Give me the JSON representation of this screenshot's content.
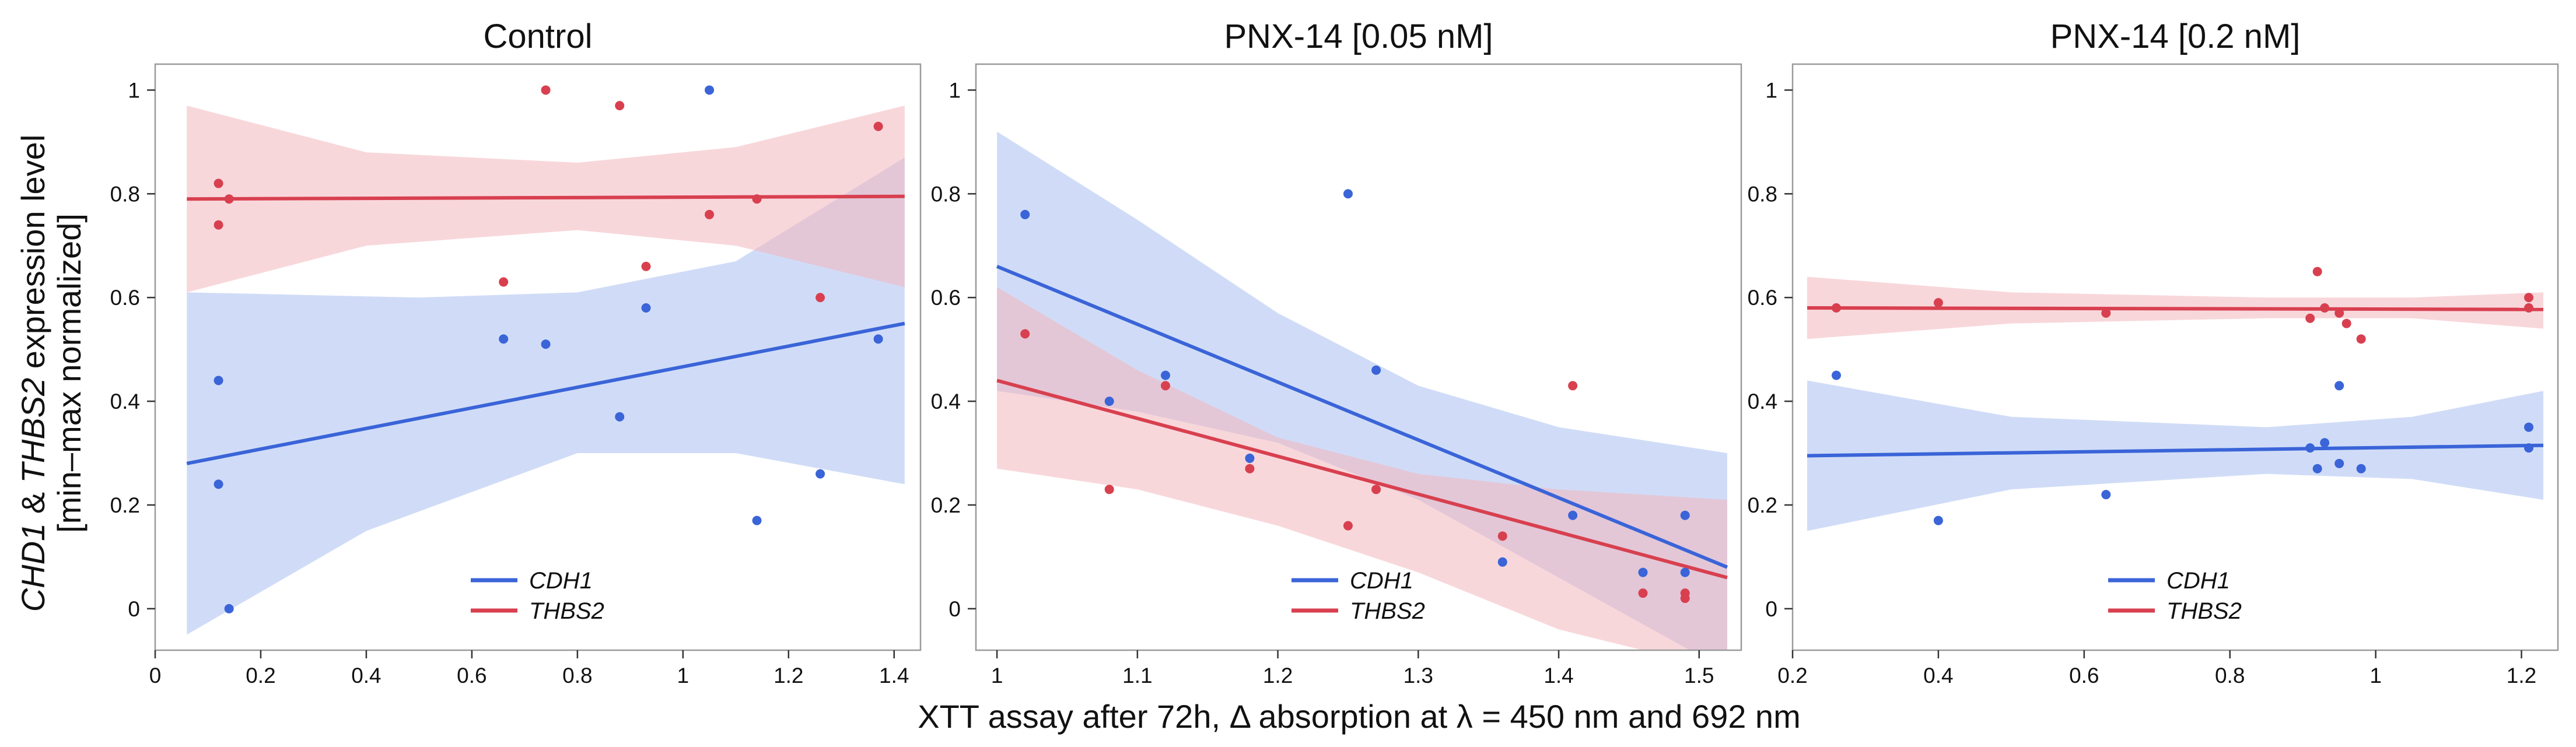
{
  "figure": {
    "xlabel": "XTT assay after 72h, Δ absorption at λ = 450 nm and 692 nm",
    "ylabel": {
      "line1_gene1": "CHD1",
      "line1_amp": " & ",
      "line1_gene2": "THBS2",
      "line1_rest": " expression level",
      "line2": "[min–max normalized]"
    }
  },
  "colors": {
    "CDH1": "#3a64d8",
    "THBS2": "#d8404f",
    "CDH1_band": "#a9bff0",
    "THBS2_band": "#f2b6bd"
  },
  "chart_data": [
    {
      "type": "scatter",
      "title": "Control",
      "xlim": [
        0,
        1.45
      ],
      "ylim": [
        -0.08,
        1.05
      ],
      "xticks": [
        0,
        0.2,
        0.4,
        0.6,
        0.8,
        1.0,
        1.2,
        1.4
      ],
      "yticks": [
        0,
        0.2,
        0.4,
        0.6,
        0.8,
        1
      ],
      "legend": "bottom-center",
      "series": [
        {
          "name": "CDH1",
          "points": [
            [
              0.12,
              0.44
            ],
            [
              0.12,
              0.24
            ],
            [
              0.14,
              0.0
            ],
            [
              0.66,
              0.52
            ],
            [
              0.74,
              0.51
            ],
            [
              0.88,
              0.37
            ],
            [
              0.93,
              0.58
            ],
            [
              1.05,
              1.0
            ],
            [
              1.14,
              0.17
            ],
            [
              1.26,
              0.26
            ],
            [
              1.37,
              0.52
            ]
          ],
          "fit": [
            [
              0.06,
              0.28
            ],
            [
              1.42,
              0.55
            ]
          ],
          "band_upper": [
            [
              0.06,
              0.61
            ],
            [
              0.5,
              0.6
            ],
            [
              0.8,
              0.61
            ],
            [
              1.1,
              0.67
            ],
            [
              1.42,
              0.87
            ]
          ],
          "band_lower": [
            [
              0.06,
              -0.05
            ],
            [
              0.4,
              0.15
            ],
            [
              0.8,
              0.3
            ],
            [
              1.1,
              0.3
            ],
            [
              1.42,
              0.24
            ]
          ]
        },
        {
          "name": "THBS2",
          "points": [
            [
              0.12,
              0.82
            ],
            [
              0.12,
              0.74
            ],
            [
              0.14,
              0.79
            ],
            [
              0.66,
              0.63
            ],
            [
              0.74,
              1.0
            ],
            [
              0.88,
              0.97
            ],
            [
              0.93,
              0.66
            ],
            [
              1.05,
              0.76
            ],
            [
              1.14,
              0.79
            ],
            [
              1.26,
              0.6
            ],
            [
              1.37,
              0.93
            ]
          ],
          "fit": [
            [
              0.06,
              0.79
            ],
            [
              1.42,
              0.795
            ]
          ],
          "band_upper": [
            [
              0.06,
              0.97
            ],
            [
              0.4,
              0.88
            ],
            [
              0.8,
              0.86
            ],
            [
              1.1,
              0.89
            ],
            [
              1.42,
              0.97
            ]
          ],
          "band_lower": [
            [
              0.06,
              0.61
            ],
            [
              0.4,
              0.7
            ],
            [
              0.8,
              0.73
            ],
            [
              1.1,
              0.7
            ],
            [
              1.42,
              0.62
            ]
          ]
        }
      ]
    },
    {
      "type": "scatter",
      "title": "PNX-14 [0.05 nM]",
      "xlim": [
        0.985,
        1.53
      ],
      "ylim": [
        -0.08,
        1.05
      ],
      "xticks": [
        1.0,
        1.1,
        1.2,
        1.3,
        1.4,
        1.5
      ],
      "yticks": [
        0,
        0.2,
        0.4,
        0.6,
        0.8,
        1
      ],
      "legend": "bottom-center",
      "series": [
        {
          "name": "CDH1",
          "points": [
            [
              1.02,
              0.76
            ],
            [
              1.08,
              0.4
            ],
            [
              1.12,
              0.45
            ],
            [
              1.18,
              0.29
            ],
            [
              1.25,
              0.8
            ],
            [
              1.27,
              0.46
            ],
            [
              1.36,
              0.09
            ],
            [
              1.41,
              0.18
            ],
            [
              1.46,
              0.07
            ],
            [
              1.49,
              0.18
            ],
            [
              1.49,
              0.07
            ]
          ],
          "fit": [
            [
              1.0,
              0.66
            ],
            [
              1.52,
              0.08
            ]
          ],
          "band_upper": [
            [
              1.0,
              0.92
            ],
            [
              1.1,
              0.75
            ],
            [
              1.2,
              0.57
            ],
            [
              1.3,
              0.43
            ],
            [
              1.4,
              0.35
            ],
            [
              1.52,
              0.3
            ]
          ],
          "band_lower": [
            [
              1.0,
              0.42
            ],
            [
              1.1,
              0.38
            ],
            [
              1.2,
              0.32
            ],
            [
              1.3,
              0.21
            ],
            [
              1.4,
              0.06
            ],
            [
              1.52,
              -0.12
            ]
          ]
        },
        {
          "name": "THBS2",
          "points": [
            [
              1.02,
              0.53
            ],
            [
              1.08,
              0.23
            ],
            [
              1.12,
              0.43
            ],
            [
              1.18,
              0.27
            ],
            [
              1.25,
              0.16
            ],
            [
              1.27,
              0.23
            ],
            [
              1.36,
              0.14
            ],
            [
              1.41,
              0.43
            ],
            [
              1.46,
              0.03
            ],
            [
              1.49,
              0.03
            ],
            [
              1.49,
              0.02
            ]
          ],
          "fit": [
            [
              1.0,
              0.44
            ],
            [
              1.52,
              0.06
            ]
          ],
          "band_upper": [
            [
              1.0,
              0.62
            ],
            [
              1.1,
              0.46
            ],
            [
              1.2,
              0.33
            ],
            [
              1.3,
              0.26
            ],
            [
              1.4,
              0.23
            ],
            [
              1.52,
              0.21
            ]
          ],
          "band_lower": [
            [
              1.0,
              0.27
            ],
            [
              1.1,
              0.23
            ],
            [
              1.2,
              0.16
            ],
            [
              1.3,
              0.07
            ],
            [
              1.4,
              -0.04
            ],
            [
              1.52,
              -0.12
            ]
          ]
        }
      ]
    },
    {
      "type": "scatter",
      "title": "PNX-14 [0.2 nM]",
      "xlim": [
        0.2,
        1.25
      ],
      "ylim": [
        -0.08,
        1.05
      ],
      "xticks": [
        0.2,
        0.4,
        0.6,
        0.8,
        1.0,
        1.2
      ],
      "yticks": [
        0,
        0.2,
        0.4,
        0.6,
        0.8,
        1
      ],
      "legend": "bottom-center",
      "series": [
        {
          "name": "CDH1",
          "points": [
            [
              0.26,
              0.45
            ],
            [
              0.4,
              0.17
            ],
            [
              0.63,
              0.22
            ],
            [
              0.91,
              0.31
            ],
            [
              0.92,
              0.27
            ],
            [
              0.93,
              0.32
            ],
            [
              0.95,
              0.43
            ],
            [
              0.95,
              0.28
            ],
            [
              0.98,
              0.27
            ],
            [
              1.21,
              0.35
            ],
            [
              1.21,
              0.31
            ]
          ],
          "fit": [
            [
              0.22,
              0.295
            ],
            [
              1.23,
              0.315
            ]
          ],
          "band_upper": [
            [
              0.22,
              0.44
            ],
            [
              0.5,
              0.37
            ],
            [
              0.85,
              0.35
            ],
            [
              1.05,
              0.37
            ],
            [
              1.23,
              0.42
            ]
          ],
          "band_lower": [
            [
              0.22,
              0.15
            ],
            [
              0.5,
              0.23
            ],
            [
              0.85,
              0.26
            ],
            [
              1.05,
              0.25
            ],
            [
              1.23,
              0.21
            ]
          ]
        },
        {
          "name": "THBS2",
          "points": [
            [
              0.26,
              0.58
            ],
            [
              0.4,
              0.59
            ],
            [
              0.63,
              0.57
            ],
            [
              0.91,
              0.56
            ],
            [
              0.92,
              0.65
            ],
            [
              0.93,
              0.58
            ],
            [
              0.95,
              0.57
            ],
            [
              0.96,
              0.55
            ],
            [
              0.98,
              0.52
            ],
            [
              1.21,
              0.6
            ],
            [
              1.21,
              0.58
            ]
          ],
          "fit": [
            [
              0.22,
              0.58
            ],
            [
              1.23,
              0.577
            ]
          ],
          "band_upper": [
            [
              0.22,
              0.64
            ],
            [
              0.5,
              0.61
            ],
            [
              0.85,
              0.6
            ],
            [
              1.05,
              0.6
            ],
            [
              1.23,
              0.61
            ]
          ],
          "band_lower": [
            [
              0.22,
              0.52
            ],
            [
              0.5,
              0.55
            ],
            [
              0.85,
              0.56
            ],
            [
              1.05,
              0.56
            ],
            [
              1.23,
              0.54
            ]
          ]
        }
      ]
    }
  ]
}
